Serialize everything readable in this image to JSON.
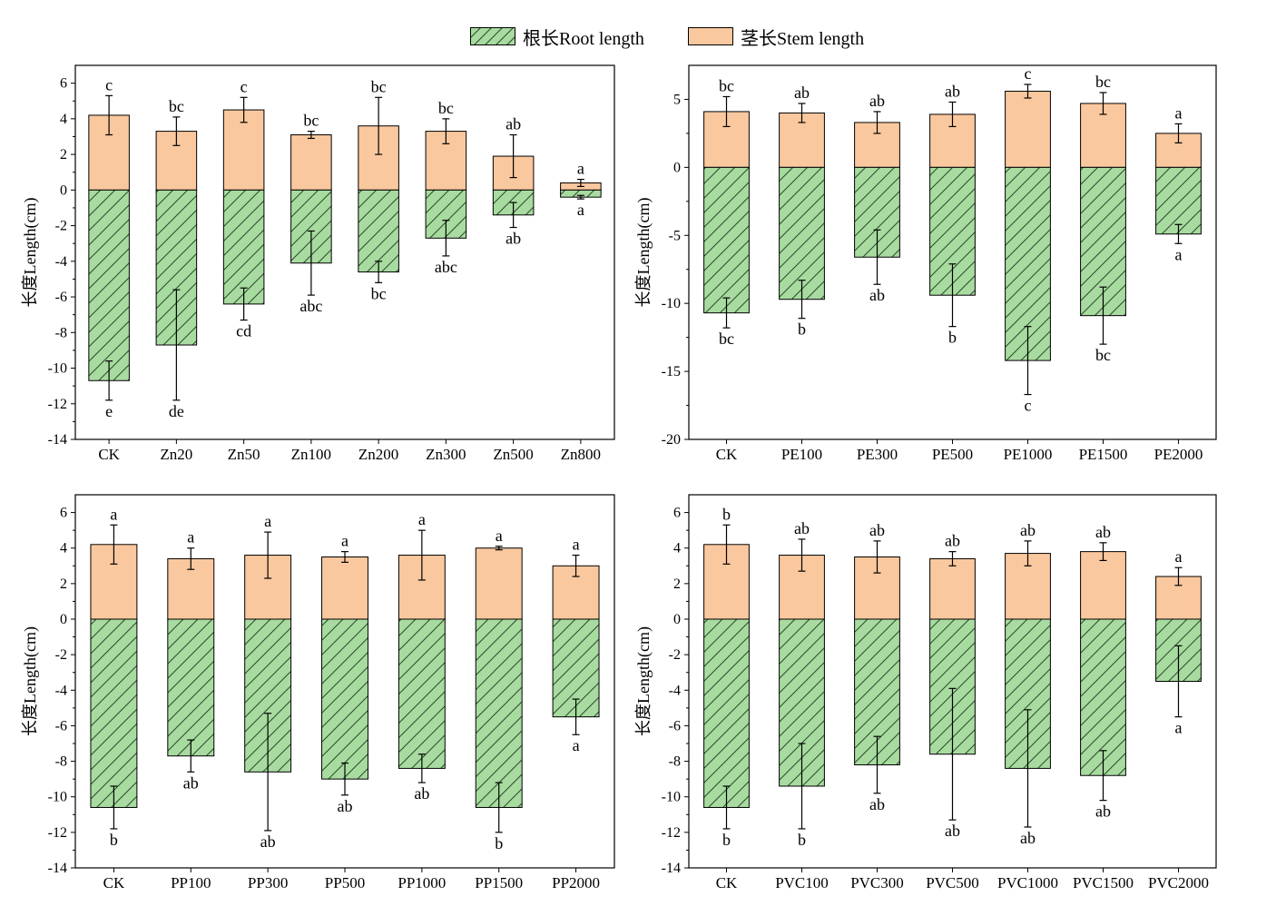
{
  "legend": {
    "root_label": "根长Root length",
    "stem_label": "茎长Stem length"
  },
  "colors": {
    "stem_fill": "#fac89e",
    "root_fill": "#a8dba0",
    "hatch": "#2b4a2b",
    "axis": "#000000"
  },
  "chart_data": [
    {
      "type": "bar",
      "panel": "top-left",
      "ylabel": "长度Length(cm)",
      "ylim": [
        -14,
        7
      ],
      "yticks": [
        6,
        4,
        2,
        0,
        -2,
        -4,
        -6,
        -8,
        -10,
        -12,
        -14
      ],
      "categories": [
        "CK",
        "Zn20",
        "Zn50",
        "Zn100",
        "Zn200",
        "Zn300",
        "Zn500",
        "Zn800"
      ],
      "series": [
        {
          "name": "茎长Stem length",
          "values": [
            4.2,
            3.3,
            4.5,
            3.1,
            3.6,
            3.3,
            1.9,
            0.4
          ],
          "errors": [
            1.1,
            0.8,
            0.7,
            0.2,
            1.6,
            0.7,
            1.2,
            0.2
          ],
          "letters": [
            "c",
            "bc",
            "c",
            "bc",
            "bc",
            "bc",
            "ab",
            "a"
          ]
        },
        {
          "name": "根长Root length",
          "values": [
            -10.7,
            -8.7,
            -6.4,
            -4.1,
            -4.6,
            -2.7,
            -1.4,
            -0.4
          ],
          "errors": [
            1.1,
            3.1,
            0.9,
            1.8,
            0.6,
            1.0,
            0.7,
            0.1
          ],
          "letters": [
            "e",
            "de",
            "cd",
            "abc",
            "bc",
            "abc",
            "ab",
            "a"
          ]
        }
      ]
    },
    {
      "type": "bar",
      "panel": "top-right",
      "ylabel": "长度Length(cm)",
      "ylim": [
        -20,
        7.5
      ],
      "yticks": [
        5,
        0,
        -5,
        -10,
        -15,
        -20
      ],
      "categories": [
        "CK",
        "PE100",
        "PE300",
        "PE500",
        "PE1000",
        "PE1500",
        "PE2000"
      ],
      "series": [
        {
          "name": "茎长Stem length",
          "values": [
            4.1,
            4.0,
            3.3,
            3.9,
            5.6,
            4.7,
            2.5
          ],
          "errors": [
            1.1,
            0.7,
            0.8,
            0.9,
            0.5,
            0.8,
            0.7
          ],
          "letters": [
            "bc",
            "ab",
            "ab",
            "ab",
            "c",
            "bc",
            "a"
          ]
        },
        {
          "name": "根长Root length",
          "values": [
            -10.7,
            -9.7,
            -6.6,
            -9.4,
            -14.2,
            -10.9,
            -4.9
          ],
          "errors": [
            1.1,
            1.4,
            2.0,
            2.3,
            2.5,
            2.1,
            0.7
          ],
          "letters": [
            "bc",
            "b",
            "ab",
            "b",
            "c",
            "bc",
            "a"
          ]
        }
      ]
    },
    {
      "type": "bar",
      "panel": "bottom-left",
      "ylabel": "长度Length(cm)",
      "ylim": [
        -14,
        7
      ],
      "yticks": [
        6,
        4,
        2,
        0,
        -2,
        -4,
        -6,
        -8,
        -10,
        -12,
        -14
      ],
      "categories": [
        "CK",
        "PP100",
        "PP300",
        "PP500",
        "PP1000",
        "PP1500",
        "PP2000"
      ],
      "series": [
        {
          "name": "茎长Stem length",
          "values": [
            4.2,
            3.4,
            3.6,
            3.5,
            3.6,
            4.0,
            3.0
          ],
          "errors": [
            1.1,
            0.6,
            1.3,
            0.3,
            1.4,
            0.1,
            0.6
          ],
          "letters": [
            "a",
            "a",
            "a",
            "a",
            "a",
            "a",
            "a"
          ]
        },
        {
          "name": "根长Root length",
          "values": [
            -10.6,
            -7.7,
            -8.6,
            -9.0,
            -8.4,
            -10.6,
            -5.5
          ],
          "errors": [
            1.2,
            0.9,
            3.3,
            0.9,
            0.8,
            1.4,
            1.0
          ],
          "letters": [
            "b",
            "ab",
            "ab",
            "ab",
            "ab",
            "b",
            "a"
          ]
        }
      ]
    },
    {
      "type": "bar",
      "panel": "bottom-right",
      "ylabel": "长度Length(cm)",
      "ylim": [
        -14,
        7
      ],
      "yticks": [
        6,
        4,
        2,
        0,
        -2,
        -4,
        -6,
        -8,
        -10,
        -12,
        -14
      ],
      "categories": [
        "CK",
        "PVC100",
        "PVC300",
        "PVC500",
        "PVC1000",
        "PVC1500",
        "PVC2000"
      ],
      "series": [
        {
          "name": "茎长Stem length",
          "values": [
            4.2,
            3.6,
            3.5,
            3.4,
            3.7,
            3.8,
            2.4
          ],
          "errors": [
            1.1,
            0.9,
            0.9,
            0.4,
            0.7,
            0.5,
            0.5
          ],
          "letters": [
            "b",
            "ab",
            "ab",
            "ab",
            "ab",
            "ab",
            "a"
          ]
        },
        {
          "name": "根长Root length",
          "values": [
            -10.6,
            -9.4,
            -8.2,
            -7.6,
            -8.4,
            -8.8,
            -3.5
          ],
          "errors": [
            1.2,
            2.4,
            1.6,
            3.7,
            3.3,
            1.4,
            2.0
          ],
          "letters": [
            "b",
            "b",
            "ab",
            "ab",
            "ab",
            "ab",
            "a"
          ]
        }
      ]
    }
  ]
}
